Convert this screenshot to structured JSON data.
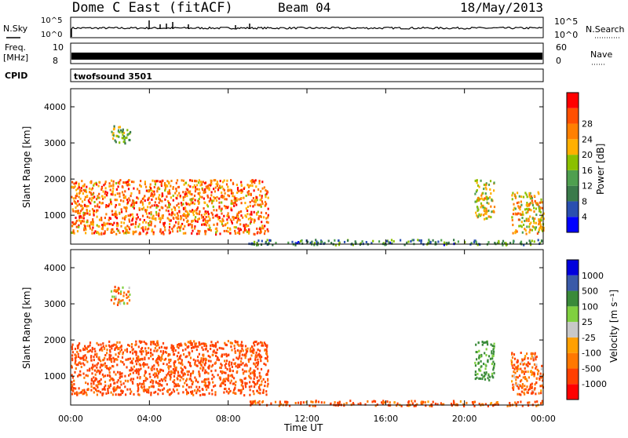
{
  "header": {
    "station": "Dome C East (fitACF)",
    "beam": "Beam 04",
    "date": "18/May/2013"
  },
  "top_panel": {
    "left_label": "N.Sky",
    "right_label": "N.Search",
    "left_ticks": [
      "10^5",
      "10^0"
    ],
    "right_ticks": [
      "10^5",
      "10^0"
    ]
  },
  "freq_panel": {
    "left_label_1": "Freq.",
    "left_label_2": "[MHz]",
    "left_ticks": [
      "10",
      "8"
    ],
    "right_label": "Nave",
    "right_ticks": [
      "60",
      "0"
    ]
  },
  "cpid_panel": {
    "label": "CPID",
    "text": "twofsound 3501"
  },
  "colors": {
    "power_scale": [
      "#0000ff",
      "#2a4fb0",
      "#3a7a4a",
      "#4f9f4f",
      "#8bc000",
      "#ffb000",
      "#ff8000",
      "#ff5000",
      "#ff0000"
    ],
    "velocity_scale": [
      "#ff0000",
      "#ff4000",
      "#ff7800",
      "#ffa000",
      "#c8c8c8",
      "#80d040",
      "#3a8a3a",
      "#3a5aa8",
      "#0000dd"
    ]
  },
  "chart_data": [
    {
      "type": "heatmap",
      "name": "power",
      "ylabel": "Slant Range [km]",
      "xlabel": "",
      "xlim": [
        "00:00",
        "24:00"
      ],
      "ylim": [
        200,
        4500
      ],
      "y_ticks": [
        "1000",
        "2000",
        "3000",
        "4000"
      ],
      "colorbar": {
        "label": "Power [dB]",
        "ticks": [
          "4",
          "8",
          "12",
          "16",
          "20",
          "24",
          "28"
        ],
        "range": [
          0,
          32
        ]
      },
      "regions": [
        {
          "x": [
            "00:00",
            "10:00"
          ],
          "y": [
            500,
            2000
          ],
          "value": 24,
          "note_color": "red-dominant"
        },
        {
          "x": [
            "09:00",
            "23:59"
          ],
          "y": [
            200,
            350
          ],
          "value": 10
        },
        {
          "x": [
            "20:30",
            "21:30"
          ],
          "y": [
            900,
            2000
          ],
          "value": 18
        },
        {
          "x": [
            "22:20",
            "24:00"
          ],
          "y": [
            500,
            1700
          ],
          "value": 20
        },
        {
          "x": [
            "02:00",
            "03:00"
          ],
          "y": [
            3000,
            3500
          ],
          "value": 14
        }
      ]
    },
    {
      "type": "heatmap",
      "name": "velocity",
      "ylabel": "Slant Range [km]",
      "xlabel": "Time UT",
      "xlim": [
        "00:00",
        "24:00"
      ],
      "ylim": [
        200,
        4500
      ],
      "x_ticks": [
        "00:00",
        "04:00",
        "08:00",
        "12:00",
        "16:00",
        "20:00",
        "00:00"
      ],
      "y_ticks": [
        "1000",
        "2000",
        "3000",
        "4000"
      ],
      "colorbar": {
        "label": "Velocity [m s⁻¹]",
        "ticks": [
          "1000",
          "500",
          "100",
          "25",
          "-25",
          "-100",
          "-500",
          "-1000"
        ]
      },
      "regions": [
        {
          "x": [
            "00:00",
            "10:00"
          ],
          "y": [
            500,
            2000
          ],
          "value": -150
        },
        {
          "x": [
            "09:00",
            "23:59"
          ],
          "y": [
            200,
            350
          ],
          "value": -120
        },
        {
          "x": [
            "20:30",
            "21:30"
          ],
          "y": [
            900,
            2000
          ],
          "value": 150
        },
        {
          "x": [
            "22:20",
            "24:00"
          ],
          "y": [
            500,
            1700
          ],
          "value": -100
        },
        {
          "x": [
            "02:00",
            "03:00"
          ],
          "y": [
            3000,
            3500
          ],
          "value": -40
        }
      ]
    }
  ]
}
